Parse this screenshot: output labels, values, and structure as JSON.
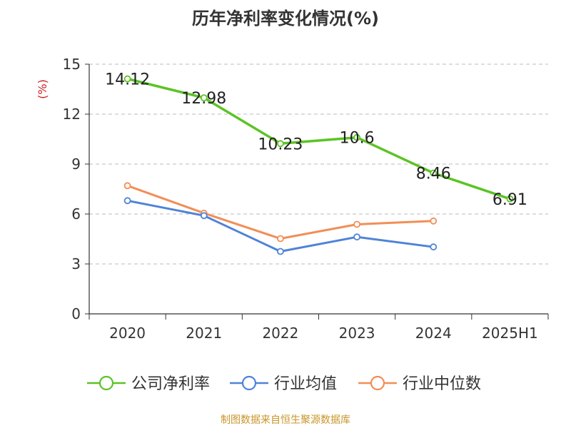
{
  "chart_data": {
    "type": "line",
    "title": "历年净利率变化情况(%)",
    "ylabel": "(%)",
    "xlabel": "",
    "categories": [
      "2020",
      "2021",
      "2022",
      "2023",
      "2024",
      "2025H1"
    ],
    "ylim": [
      0,
      15
    ],
    "yticks": [
      0,
      3,
      6,
      9,
      12,
      15
    ],
    "grid": "horizontal-dashed",
    "legend_position": "bottom",
    "series": [
      {
        "name": "公司净利率",
        "color": "#5bc424",
        "values": [
          14.12,
          12.98,
          10.23,
          10.6,
          8.46,
          6.91
        ],
        "data_labels": [
          "14.12",
          "12.98",
          "10.23",
          "10.6",
          "8.46",
          "6.91"
        ]
      },
      {
        "name": "行业均值",
        "color": "#4f83d8",
        "values": [
          6.8,
          5.9,
          3.75,
          4.62,
          4.02,
          null
        ]
      },
      {
        "name": "行业中位数",
        "color": "#f28e56",
        "values": [
          7.7,
          6.05,
          4.52,
          5.38,
          5.58,
          null
        ]
      }
    ],
    "source": "制图数据来自恒生聚源数据库"
  }
}
